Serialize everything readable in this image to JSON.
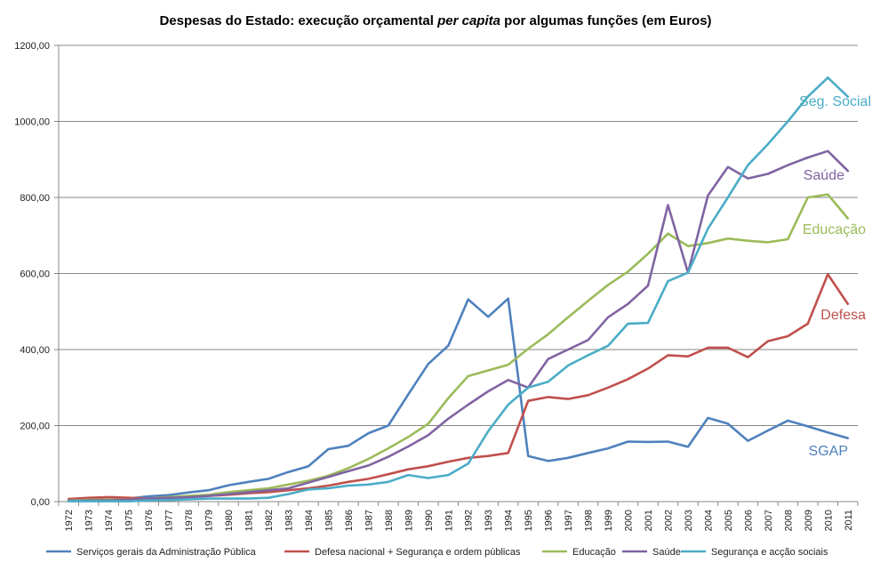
{
  "chart_data": {
    "type": "line",
    "title_parts": [
      {
        "text": "Despesas do Estado: execução orçamental ",
        "italic": false
      },
      {
        "text": "per capita",
        "italic": true
      },
      {
        "text": " por algumas funções  (em Euros)",
        "italic": false
      }
    ],
    "xlabel": "",
    "ylabel": "",
    "ylim": [
      0,
      1200
    ],
    "yticks": [
      0,
      200,
      400,
      600,
      800,
      1000,
      1200
    ],
    "ytick_labels": [
      "0,00",
      "200,00",
      "400,00",
      "600,00",
      "800,00",
      "1000,00",
      "1200,00"
    ],
    "grid": true,
    "legend_position": "bottom",
    "categories": [
      "1972",
      "1973",
      "1974",
      "1975",
      "1976",
      "1977",
      "1978",
      "1979",
      "1980",
      "1981",
      "1982",
      "1983",
      "1984",
      "1985",
      "1986",
      "1987",
      "1988",
      "1989",
      "1990",
      "1991",
      "1992",
      "1993",
      "1994",
      "1995",
      "1996",
      "1997",
      "1998",
      "1999",
      "2000",
      "2001",
      "2002",
      "2003",
      "2004",
      "2005",
      "2006",
      "2007",
      "2008",
      "2009",
      "2010",
      "2011"
    ],
    "series": [
      {
        "name": "Serviços gerais da Administração Pública",
        "color": "#4F81BD",
        "end_label": "SGAP",
        "values": [
          5,
          5,
          5,
          8,
          14,
          17,
          24,
          30,
          43,
          52,
          60,
          78,
          93,
          138,
          147,
          180,
          200,
          282,
          362,
          410,
          532,
          486,
          534,
          120,
          107,
          115,
          128,
          140,
          158,
          157,
          158,
          144,
          220,
          205,
          160,
          187,
          213,
          198,
          182,
          167
        ]
      },
      {
        "name": "Defesa nacional + Segurança e ordem públicas",
        "color": "#C0504D",
        "end_label": "Defesa",
        "values": [
          7,
          10,
          12,
          10,
          8,
          10,
          12,
          15,
          18,
          22,
          25,
          30,
          35,
          42,
          52,
          60,
          72,
          85,
          93,
          105,
          115,
          120,
          128,
          265,
          275,
          270,
          280,
          300,
          322,
          350,
          385,
          382,
          405,
          405,
          380,
          422,
          435,
          468,
          598,
          520
        ]
      },
      {
        "name": "Educação",
        "color": "#9BBB59",
        "end_label": "Educação",
        "values": [
          3,
          5,
          5,
          5,
          8,
          12,
          15,
          18,
          25,
          30,
          35,
          45,
          55,
          68,
          88,
          112,
          140,
          170,
          205,
          272,
          330,
          345,
          360,
          402,
          440,
          485,
          528,
          570,
          605,
          652,
          705,
          672,
          680,
          692,
          686,
          682,
          690,
          800,
          808,
          745
        ]
      },
      {
        "name": "Saúde",
        "color": "#8064A2",
        "end_label": "Saúde",
        "values": [
          2,
          3,
          3,
          5,
          8,
          10,
          12,
          15,
          20,
          25,
          30,
          35,
          50,
          65,
          80,
          95,
          118,
          145,
          175,
          218,
          255,
          290,
          320,
          300,
          375,
          400,
          425,
          485,
          520,
          568,
          780,
          602,
          805,
          880,
          850,
          862,
          885,
          905,
          922,
          870
        ]
      },
      {
        "name": "Segurança e acção sociais",
        "color": "#4BACC6",
        "end_label": "Seg. Social",
        "values": [
          1,
          1,
          1,
          1,
          3,
          4,
          6,
          8,
          8,
          8,
          10,
          20,
          32,
          35,
          42,
          45,
          52,
          70,
          62,
          70,
          100,
          185,
          255,
          300,
          315,
          358,
          385,
          410,
          468,
          470,
          580,
          602,
          718,
          800,
          885,
          940,
          1000,
          1065,
          1115,
          1065
        ]
      }
    ]
  }
}
